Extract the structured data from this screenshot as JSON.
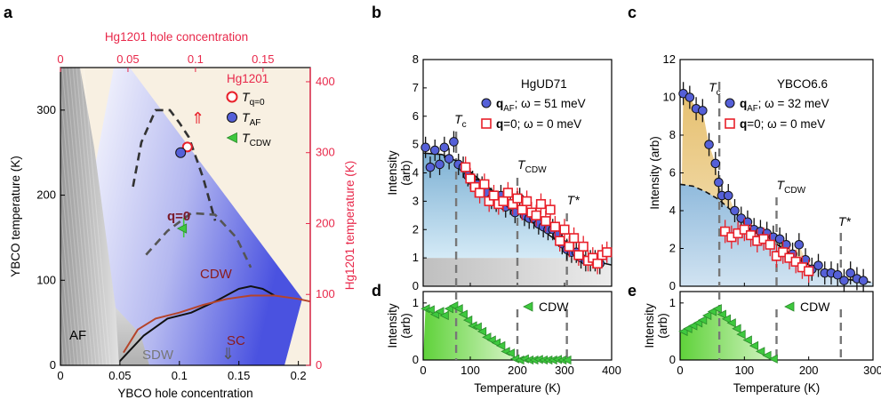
{
  "figure": {
    "panels": {
      "a": "a",
      "b": "b",
      "c": "c",
      "d": "d",
      "e": "e"
    }
  },
  "chart_data": [
    {
      "panel": "a",
      "type": "scatter",
      "bottom_axis": {
        "label": "YBCO hole concentration",
        "range": [
          0,
          0.21
        ],
        "ticks": [
          0,
          0.05,
          0.1,
          0.15,
          0.2
        ],
        "tick_labels": [
          "0",
          "0.05",
          "0.1",
          "0.15",
          "0.2"
        ]
      },
      "top_axis": {
        "label": "Hg1201 hole concentration",
        "range": [
          0,
          0.185
        ],
        "ticks": [
          0,
          0.05,
          0.1,
          0.15
        ],
        "tick_labels": [
          "0",
          "0.05",
          "0.1",
          "0.15"
        ],
        "color": "#e8284a"
      },
      "left_axis": {
        "label": "YBCO temperature (K)",
        "range": [
          0,
          350
        ],
        "ticks": [
          0,
          100,
          200,
          300
        ],
        "tick_labels": [
          "0",
          "100",
          "200",
          "300"
        ]
      },
      "right_axis": {
        "label": "Hg1201 temperature (K)",
        "range": [
          0,
          420
        ],
        "ticks": [
          0,
          100,
          200,
          300,
          400
        ],
        "tick_labels": [
          "0",
          "100",
          "200",
          "300",
          "400"
        ],
        "color": "#e8284a"
      },
      "region_labels": {
        "af": "AF",
        "sdw": "SDW",
        "sc": "SC",
        "cdw": "CDW",
        "q0": "q=0"
      },
      "arrows": {
        "up": "⇑",
        "down": "⇓"
      },
      "legend": {
        "title": "Hg1201",
        "entries": [
          {
            "marker": "open-circle",
            "color": "#e8202a",
            "label_main": "T",
            "label_sub": "q=0"
          },
          {
            "marker": "filled-circle",
            "color": "#5560d8",
            "label_main": "T",
            "label_sub": "AF"
          },
          {
            "marker": "left-triangle",
            "color": "#3ec83e",
            "label_main": "T",
            "label_sub": "CDW"
          }
        ]
      },
      "points": [
        {
          "name": "T_q=0",
          "x": 0.094,
          "y": 308,
          "x_axis": "top",
          "y_axis": "right",
          "marker": "open-circle"
        },
        {
          "name": "T_AF",
          "x": 0.089,
          "y": 300,
          "x_axis": "top",
          "y_axis": "right",
          "marker": "filled-circle"
        },
        {
          "name": "T_CDW",
          "x": 0.09,
          "y": 193,
          "x_axis": "top",
          "y_axis": "right",
          "marker": "left-triangle"
        }
      ],
      "lines": [
        {
          "name": "YBCO Tc",
          "color": "#111111",
          "x": [
            0.05,
            0.07,
            0.09,
            0.11,
            0.13,
            0.15,
            0.16,
            0.17,
            0.18
          ],
          "y": [
            5,
            35,
            55,
            62,
            75,
            90,
            93,
            90,
            82
          ]
        },
        {
          "name": "Hg1201 Tc",
          "color": "#b5442a",
          "x": [
            0.053,
            0.065,
            0.08,
            0.1,
            0.12,
            0.14,
            0.16,
            0.18,
            0.2,
            0.21
          ],
          "y": [
            15,
            42,
            55,
            62,
            71,
            78,
            82,
            82,
            78,
            75
          ]
        },
        {
          "name": "q=0 boundary",
          "color": "#333333",
          "dash": true,
          "x": [
            0.061,
            0.068,
            0.08,
            0.092,
            0.1,
            0.108,
            0.12,
            0.13
          ],
          "y": [
            210,
            262,
            300,
            300,
            285,
            268,
            220,
            170
          ]
        },
        {
          "name": "CDW dome",
          "color": "#555555",
          "dash": true,
          "x": [
            0.072,
            0.09,
            0.11,
            0.13,
            0.148,
            0.16
          ],
          "y": [
            130,
            158,
            179,
            177,
            150,
            115
          ]
        }
      ]
    },
    {
      "panel": "b",
      "type": "scatter",
      "sample": "HgUD71",
      "xlabel": "Temperature (K)",
      "ylabel": "Intensity (arb)",
      "xlim": [
        0,
        400
      ],
      "ylim": [
        0,
        8
      ],
      "xticks": [
        0,
        100,
        200,
        300,
        400
      ],
      "yticks": [
        0,
        1,
        2,
        3,
        4,
        5,
        6,
        7,
        8
      ],
      "markers": [
        {
          "label_main": "T",
          "label_sub": "c",
          "x": 70
        },
        {
          "label_main": "T",
          "label_sub": "CDW",
          "x": 200
        },
        {
          "label_main": "T*",
          "label_sub": "",
          "x": 305
        }
      ],
      "series": [
        {
          "name": "qAF; ω = 51 meV",
          "legend_main": "q",
          "legend_sub": "AF",
          "legend_rest": "; ω = 51 meV",
          "marker": "filled-circle",
          "color": "#5560d8",
          "x": [
            5,
            15,
            25,
            35,
            45,
            55,
            65,
            75,
            85,
            95,
            105,
            115,
            125,
            135,
            145,
            155,
            165,
            175,
            185,
            195,
            205,
            215,
            225,
            235,
            245,
            255,
            265,
            275,
            285,
            295,
            305,
            315,
            325,
            335,
            345,
            355,
            365,
            375
          ],
          "y": [
            4.9,
            4.2,
            4.8,
            4.3,
            4.9,
            4.5,
            5.1,
            4.3,
            4.2,
            3.9,
            3.7,
            3.6,
            3.5,
            3.3,
            3.1,
            3.0,
            3.2,
            2.8,
            2.9,
            2.6,
            3.1,
            2.5,
            2.4,
            2.4,
            2.2,
            2.1,
            2.0,
            2.0,
            1.8,
            1.5,
            1.3,
            1.2,
            1.2,
            1.0,
            0.9,
            0.9,
            0.9,
            0.8
          ]
        },
        {
          "name": "q=0; ω = 0 meV",
          "legend_main": "q",
          "legend_sub": "",
          "legend_rest": "=0; ω = 0 meV",
          "marker": "open-square",
          "color": "#e8202a",
          "x": [
            90,
            100,
            110,
            120,
            130,
            140,
            150,
            160,
            170,
            180,
            190,
            200,
            210,
            220,
            230,
            240,
            250,
            260,
            270,
            280,
            290,
            300,
            310,
            320,
            330,
            340,
            350,
            360,
            370,
            380,
            390
          ],
          "y": [
            4.2,
            3.8,
            3.5,
            3.3,
            3.6,
            3.0,
            3.2,
            2.9,
            3.0,
            3.3,
            2.9,
            3.1,
            2.7,
            3.0,
            2.6,
            2.5,
            2.9,
            2.3,
            2.7,
            2.1,
            1.6,
            2.0,
            1.4,
            1.7,
            1.1,
            1.4,
            0.9,
            1.0,
            0.8,
            1.1,
            1.2
          ]
        },
        {
          "name": "fit",
          "marker": "line",
          "color": "#111111",
          "x": [
            0,
            40,
            80,
            120,
            160,
            200,
            240,
            280,
            320,
            360,
            400
          ],
          "y": [
            4.7,
            4.65,
            4.35,
            3.75,
            3.2,
            2.65,
            2.15,
            1.65,
            1.2,
            0.9,
            0.75
          ]
        }
      ]
    },
    {
      "panel": "c",
      "type": "scatter",
      "sample": "YBCO6.6",
      "xlabel": "Temperature (K)",
      "ylabel": "Intensity (arb)",
      "xlim": [
        0,
        300
      ],
      "ylim": [
        0,
        12
      ],
      "xticks": [
        0,
        100,
        200,
        300
      ],
      "yticks": [
        0,
        2,
        4,
        6,
        8,
        10,
        12
      ],
      "markers": [
        {
          "label_main": "T",
          "label_sub": "c",
          "x": 61
        },
        {
          "label_main": "T",
          "label_sub": "CDW",
          "x": 150
        },
        {
          "label_main": "T*",
          "label_sub": "",
          "x": 250
        }
      ],
      "series": [
        {
          "name": "qAF; ω = 32 meV",
          "legend_main": "q",
          "legend_sub": "AF",
          "legend_rest": "; ω = 32 meV",
          "marker": "filled-circle",
          "color": "#5560d8",
          "x": [
            5,
            15,
            25,
            35,
            45,
            55,
            60,
            65,
            75,
            85,
            95,
            105,
            115,
            125,
            135,
            145,
            155,
            165,
            175,
            185,
            195,
            205,
            215,
            225,
            235,
            245,
            255,
            265,
            275,
            285
          ],
          "y": [
            10.2,
            10.0,
            9.4,
            9.3,
            7.5,
            6.5,
            5.5,
            4.8,
            4.8,
            4.0,
            3.6,
            3.4,
            3.0,
            2.9,
            2.8,
            2.6,
            2.5,
            2.2,
            1.7,
            2.2,
            1.4,
            0.9,
            1.1,
            0.7,
            0.7,
            0.6,
            0.3,
            0.7,
            0.4,
            0.3
          ]
        },
        {
          "name": "q=0; ω = 0 meV",
          "legend_main": "q",
          "legend_sub": "",
          "legend_rest": "=0; ω = 0 meV",
          "marker": "open-square",
          "color": "#e8202a",
          "x": [
            70,
            80,
            90,
            100,
            110,
            120,
            130,
            140,
            150,
            160,
            170,
            180,
            190,
            200
          ],
          "y": [
            2.9,
            2.6,
            2.8,
            3.0,
            2.7,
            2.4,
            2.5,
            2.2,
            1.6,
            1.8,
            1.5,
            1.3,
            1.0,
            0.8
          ]
        },
        {
          "name": "fit",
          "marker": "dashed-line",
          "color": "#111111",
          "x": [
            0,
            20,
            40,
            60,
            80,
            100,
            130,
            160,
            190,
            220,
            250,
            300
          ],
          "y": [
            5.4,
            5.3,
            5.0,
            4.6,
            4.0,
            3.5,
            2.7,
            2.0,
            1.3,
            0.8,
            0.4,
            0.2
          ]
        }
      ]
    },
    {
      "panel": "d",
      "type": "scatter",
      "xlabel": "Temperature (K)",
      "ylabel": "Intensity (arb)",
      "xlim": [
        0,
        400
      ],
      "ylim": [
        0,
        1.2
      ],
      "xticks": [
        0,
        100,
        200,
        300,
        400
      ],
      "yticks": [
        0,
        1
      ],
      "markers": [
        {
          "x": 70
        },
        {
          "x": 200
        },
        {
          "x": 305
        }
      ],
      "series": [
        {
          "name": "CDW",
          "legend_label": "CDW",
          "marker": "left-triangle",
          "color": "#3ec83e",
          "x": [
            5,
            15,
            25,
            35,
            45,
            55,
            65,
            75,
            85,
            95,
            105,
            115,
            125,
            135,
            145,
            155,
            165,
            175,
            185,
            195,
            205,
            215,
            225,
            235,
            245,
            255,
            265,
            275,
            285,
            295,
            305
          ],
          "y": [
            0.9,
            0.88,
            0.8,
            0.85,
            0.78,
            0.9,
            0.95,
            0.9,
            0.8,
            0.7,
            0.6,
            0.58,
            0.5,
            0.4,
            0.35,
            0.3,
            0.25,
            0.15,
            0.12,
            0.02,
            0.0,
            0.02,
            0.0,
            0.0,
            0.01,
            0.0,
            0.0,
            0.0,
            0.01,
            0.0,
            0.0
          ]
        }
      ]
    },
    {
      "panel": "e",
      "type": "scatter",
      "xlabel": "Temperature (K)",
      "ylabel": "Intensity (arb)",
      "xlim": [
        0,
        300
      ],
      "ylim": [
        0,
        1.2
      ],
      "xticks": [
        0,
        100,
        200,
        300
      ],
      "yticks": [
        0,
        1
      ],
      "markers": [
        {
          "x": 61
        },
        {
          "x": 150
        },
        {
          "x": 250
        }
      ],
      "series": [
        {
          "name": "CDW",
          "legend_label": "CDW",
          "marker": "left-triangle",
          "color": "#3ec83e",
          "x": [
            5,
            12,
            20,
            28,
            35,
            42,
            50,
            58,
            65,
            72,
            80,
            88,
            95,
            105,
            115,
            125,
            135,
            145
          ],
          "y": [
            0.5,
            0.55,
            0.6,
            0.65,
            0.7,
            0.78,
            0.85,
            0.9,
            0.8,
            0.72,
            0.65,
            0.55,
            0.45,
            0.35,
            0.25,
            0.15,
            0.08,
            0.02
          ]
        }
      ]
    }
  ]
}
